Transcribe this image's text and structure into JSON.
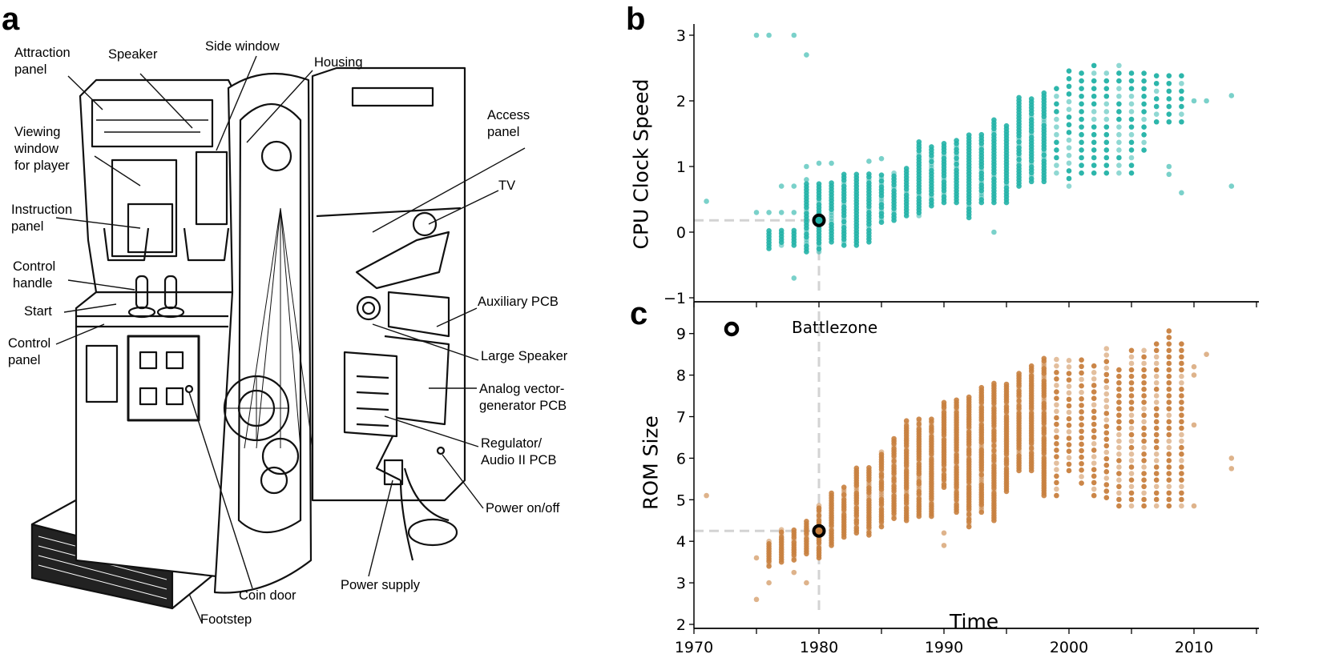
{
  "panels": {
    "a": "a",
    "b": "b",
    "c": "c"
  },
  "diagram": {
    "labels": [
      "Attraction\npanel",
      "Speaker",
      "Side window",
      "Housing",
      "Viewing\nwindow\nfor player",
      "Access\npanel",
      "TV",
      "Instruction\npanel",
      "Control\nhandle",
      "Start",
      "Auxiliary PCB",
      "Control\npanel",
      "Large Speaker",
      "Analog vector-\ngenerator PCB",
      "Regulator/\nAudio II PCB",
      "Power on/off",
      "Power supply",
      "Coin door",
      "Footstep"
    ]
  },
  "legend": {
    "marker": "ring",
    "label": "Battlezone"
  },
  "chart_data": [
    {
      "type": "scatter",
      "panel": "b",
      "title": "",
      "xlabel": "",
      "ylabel": "CPU Clock Speed",
      "xlim": [
        1970,
        2015
      ],
      "ylim": [
        -1.05,
        3.2
      ],
      "xticks": [
        1970,
        1975,
        1980,
        1985,
        1990,
        1995,
        2000,
        2005,
        2010,
        2015
      ],
      "xtick_labels_shown": false,
      "yticks": [
        -1,
        0,
        1,
        2,
        3
      ],
      "ytick_labels": [
        "−1",
        "0",
        "1",
        "2",
        "3"
      ],
      "color": "#22b2a7",
      "grid": false,
      "columns_year_min_max": [
        [
          1976,
          -0.25,
          0.05
        ],
        [
          1977,
          -0.2,
          0.05
        ],
        [
          1978,
          -0.2,
          0.05
        ],
        [
          1979,
          -0.3,
          0.75
        ],
        [
          1980,
          -0.3,
          0.75
        ],
        [
          1981,
          -0.15,
          0.78
        ],
        [
          1982,
          -0.2,
          0.9
        ],
        [
          1983,
          -0.2,
          0.88
        ],
        [
          1984,
          -0.15,
          0.9
        ],
        [
          1985,
          0.15,
          0.9
        ],
        [
          1986,
          0.18,
          0.92
        ],
        [
          1987,
          0.25,
          1.0
        ],
        [
          1988,
          0.25,
          1.38
        ],
        [
          1989,
          0.4,
          1.3
        ],
        [
          1990,
          0.45,
          1.38
        ],
        [
          1991,
          0.45,
          1.4
        ],
        [
          1992,
          0.22,
          1.5
        ],
        [
          1993,
          0.45,
          1.5
        ],
        [
          1994,
          0.45,
          1.75
        ],
        [
          1995,
          0.45,
          1.65
        ],
        [
          1996,
          0.7,
          2.05
        ],
        [
          1997,
          0.77,
          2.05
        ],
        [
          1998,
          0.77,
          2.12
        ],
        [
          1999,
          0.9,
          2.3
        ],
        [
          2000,
          0.7,
          2.48
        ],
        [
          2001,
          0.9,
          2.48
        ],
        [
          2002,
          0.9,
          2.6
        ],
        [
          2003,
          0.9,
          2.48
        ],
        [
          2004,
          0.9,
          2.6
        ],
        [
          2005,
          0.9,
          2.48
        ],
        [
          2006,
          1.25,
          2.48
        ],
        [
          2007,
          1.68,
          2.48
        ],
        [
          2008,
          1.68,
          2.48
        ],
        [
          2009,
          1.68,
          2.48
        ]
      ],
      "points": [
        [
          1971,
          0.47
        ],
        [
          1975,
          3.0
        ],
        [
          1975,
          0.3
        ],
        [
          1976,
          3.0
        ],
        [
          1976,
          0.3
        ],
        [
          1977,
          0.3
        ],
        [
          1977,
          0.7
        ],
        [
          1978,
          3.0
        ],
        [
          1978,
          0.7
        ],
        [
          1978,
          0.3
        ],
        [
          1978,
          -0.7
        ],
        [
          1979,
          2.7
        ],
        [
          1979,
          1.0
        ],
        [
          1979,
          0.8
        ],
        [
          1980,
          1.05
        ],
        [
          1981,
          1.05
        ],
        [
          1984,
          1.08
        ],
        [
          1985,
          1.12
        ],
        [
          1994,
          0.0
        ],
        [
          2008,
          0.88
        ],
        [
          2008,
          1.0
        ],
        [
          2009,
          0.6
        ],
        [
          2010,
          2.0
        ],
        [
          2011,
          2.0
        ],
        [
          2013,
          2.08
        ],
        [
          2013,
          0.7
        ]
      ],
      "highlight": {
        "label": "Battlezone",
        "x": 1980,
        "y": 0.18
      }
    },
    {
      "type": "scatter",
      "panel": "c",
      "title": "",
      "xlabel": "Time",
      "ylabel": "ROM Size",
      "xlim": [
        1970,
        2015
      ],
      "ylim": [
        1.9,
        9.8
      ],
      "xticks": [
        1970,
        1975,
        1980,
        1985,
        1990,
        1995,
        2000,
        2005,
        2010,
        2015
      ],
      "xtick_labels": [
        "1970",
        "",
        "1980",
        "",
        "1990",
        "",
        "2000",
        "",
        "2010",
        ""
      ],
      "yticks": [
        2,
        3,
        4,
        5,
        6,
        7,
        8,
        9
      ],
      "ytick_labels": [
        "2",
        "3",
        "4",
        "5",
        "6",
        "7",
        "8",
        "9"
      ],
      "color": "#c8803e",
      "grid": false,
      "columns_year_min_max": [
        [
          1976,
          3.4,
          4.05
        ],
        [
          1977,
          3.5,
          4.3
        ],
        [
          1978,
          3.55,
          4.3
        ],
        [
          1979,
          3.7,
          4.48
        ],
        [
          1980,
          3.6,
          4.9
        ],
        [
          1981,
          3.9,
          5.2
        ],
        [
          1982,
          4.1,
          5.35
        ],
        [
          1983,
          4.2,
          5.78
        ],
        [
          1984,
          4.15,
          5.8
        ],
        [
          1985,
          4.35,
          6.2
        ],
        [
          1986,
          4.55,
          6.5
        ],
        [
          1987,
          4.5,
          6.95
        ],
        [
          1988,
          4.6,
          6.95
        ],
        [
          1989,
          4.6,
          6.95
        ],
        [
          1990,
          5.3,
          7.35
        ],
        [
          1991,
          4.7,
          7.4
        ],
        [
          1992,
          4.35,
          7.5
        ],
        [
          1993,
          4.7,
          7.7
        ],
        [
          1994,
          4.5,
          7.8
        ],
        [
          1995,
          5.2,
          7.8
        ],
        [
          1996,
          5.7,
          8.05
        ],
        [
          1997,
          5.7,
          8.25
        ],
        [
          1998,
          5.1,
          8.45
        ],
        [
          1999,
          5.1,
          8.4
        ],
        [
          2000,
          5.7,
          8.5
        ],
        [
          2001,
          5.4,
          8.5
        ],
        [
          2002,
          5.1,
          8.3
        ],
        [
          2003,
          5.05,
          8.75
        ],
        [
          2004,
          4.85,
          8.25
        ],
        [
          2005,
          4.85,
          8.6
        ],
        [
          2006,
          4.85,
          8.6
        ],
        [
          2007,
          4.85,
          8.75
        ],
        [
          2008,
          4.85,
          9.2
        ],
        [
          2009,
          4.85,
          8.75
        ]
      ],
      "points": [
        [
          1971,
          5.1
        ],
        [
          1975,
          3.6
        ],
        [
          1975,
          2.6
        ],
        [
          1976,
          3.0
        ],
        [
          1978,
          3.25
        ],
        [
          1979,
          3.0
        ],
        [
          1990,
          3.9
        ],
        [
          1990,
          4.2
        ],
        [
          2010,
          4.85
        ],
        [
          2010,
          6.8
        ],
        [
          2010,
          8.0
        ],
        [
          2010,
          8.2
        ],
        [
          2011,
          8.5
        ],
        [
          2013,
          6.0
        ],
        [
          2013,
          5.75
        ]
      ],
      "highlight": {
        "label": "Battlezone",
        "x": 1980,
        "y": 4.25
      }
    }
  ]
}
